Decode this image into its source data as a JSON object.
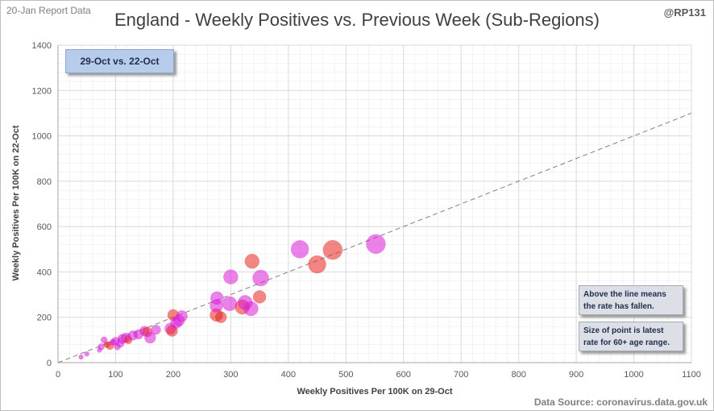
{
  "report_date": "20-Jan Report Data",
  "handle": "@RP131",
  "source": "Data Source: coronavirus.data.gov.uk",
  "period_label": "29-Oct vs. 22-Oct",
  "notes": [
    "Above the line means the rate has fallen.",
    "Size of point is latest rate for 60+ age range."
  ],
  "colors": {
    "falling": "#d81bd8",
    "rising": "#e8231e",
    "diagonal": "#808080",
    "grid": "#d9d9d9"
  },
  "chart_data": {
    "type": "scatter",
    "title": "England - Weekly Positives vs. Previous Week (Sub-Regions)",
    "xlabel": "Weekly Positives Per 100K on 29-Oct",
    "ylabel": "Weekly Positives Per 100K on 22-Oct",
    "xlim": [
      0,
      1100
    ],
    "ylim": [
      0,
      1400
    ],
    "xticks": [
      "0",
      "100",
      "200",
      "300",
      "400",
      "500",
      "600",
      "700",
      "800",
      "900",
      "1000",
      "1100"
    ],
    "yticks": [
      "0",
      "200",
      "400",
      "600",
      "800",
      "1000",
      "1200",
      "1400"
    ],
    "grid": true,
    "reference_line": "y = x",
    "points": [
      {
        "x": 40,
        "y": 25,
        "size": 3,
        "color": "falling"
      },
      {
        "x": 50,
        "y": 38,
        "size": 3,
        "color": "falling"
      },
      {
        "x": 72,
        "y": 55,
        "size": 3,
        "color": "falling"
      },
      {
        "x": 75,
        "y": 70,
        "size": 4,
        "color": "falling"
      },
      {
        "x": 80,
        "y": 100,
        "size": 4,
        "color": "falling"
      },
      {
        "x": 85,
        "y": 80,
        "size": 4,
        "color": "rising"
      },
      {
        "x": 90,
        "y": 75,
        "size": 5,
        "color": "rising"
      },
      {
        "x": 95,
        "y": 90,
        "size": 4,
        "color": "falling"
      },
      {
        "x": 100,
        "y": 95,
        "size": 5,
        "color": "falling"
      },
      {
        "x": 103,
        "y": 70,
        "size": 4,
        "color": "falling"
      },
      {
        "x": 108,
        "y": 85,
        "size": 5,
        "color": "falling"
      },
      {
        "x": 112,
        "y": 105,
        "size": 6,
        "color": "falling"
      },
      {
        "x": 118,
        "y": 110,
        "size": 6,
        "color": "falling"
      },
      {
        "x": 122,
        "y": 100,
        "size": 5,
        "color": "rising"
      },
      {
        "x": 130,
        "y": 120,
        "size": 6,
        "color": "falling"
      },
      {
        "x": 140,
        "y": 125,
        "size": 6,
        "color": "falling"
      },
      {
        "x": 150,
        "y": 140,
        "size": 6,
        "color": "falling"
      },
      {
        "x": 155,
        "y": 135,
        "size": 6,
        "color": "rising"
      },
      {
        "x": 160,
        "y": 110,
        "size": 7,
        "color": "falling"
      },
      {
        "x": 170,
        "y": 145,
        "size": 6,
        "color": "falling"
      },
      {
        "x": 195,
        "y": 150,
        "size": 7,
        "color": "falling"
      },
      {
        "x": 198,
        "y": 140,
        "size": 7,
        "color": "rising"
      },
      {
        "x": 200,
        "y": 210,
        "size": 7,
        "color": "rising"
      },
      {
        "x": 205,
        "y": 175,
        "size": 7,
        "color": "falling"
      },
      {
        "x": 210,
        "y": 185,
        "size": 7,
        "color": "falling"
      },
      {
        "x": 215,
        "y": 205,
        "size": 7,
        "color": "falling"
      },
      {
        "x": 275,
        "y": 210,
        "size": 8,
        "color": "rising"
      },
      {
        "x": 275,
        "y": 250,
        "size": 8,
        "color": "falling"
      },
      {
        "x": 276,
        "y": 285,
        "size": 8,
        "color": "falling"
      },
      {
        "x": 283,
        "y": 200,
        "size": 7,
        "color": "rising"
      },
      {
        "x": 298,
        "y": 260,
        "size": 9,
        "color": "falling"
      },
      {
        "x": 300,
        "y": 378,
        "size": 9,
        "color": "falling"
      },
      {
        "x": 320,
        "y": 245,
        "size": 9,
        "color": "rising"
      },
      {
        "x": 325,
        "y": 265,
        "size": 9,
        "color": "falling"
      },
      {
        "x": 335,
        "y": 238,
        "size": 9,
        "color": "falling"
      },
      {
        "x": 337,
        "y": 447,
        "size": 9,
        "color": "rising"
      },
      {
        "x": 350,
        "y": 290,
        "size": 8,
        "color": "rising"
      },
      {
        "x": 352,
        "y": 373,
        "size": 10,
        "color": "falling"
      },
      {
        "x": 420,
        "y": 500,
        "size": 11,
        "color": "falling"
      },
      {
        "x": 450,
        "y": 433,
        "size": 11,
        "color": "rising"
      },
      {
        "x": 477,
        "y": 497,
        "size": 12,
        "color": "rising"
      },
      {
        "x": 552,
        "y": 523,
        "size": 12,
        "color": "falling"
      }
    ]
  }
}
